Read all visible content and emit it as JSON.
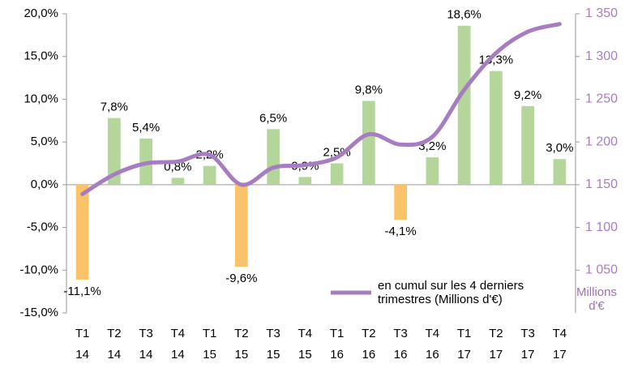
{
  "chart_data": {
    "type": "bar_line",
    "categories": [
      [
        "T1",
        "14"
      ],
      [
        "T2",
        "14"
      ],
      [
        "T3",
        "14"
      ],
      [
        "T4",
        "14"
      ],
      [
        "T1",
        "15"
      ],
      [
        "T2",
        "15"
      ],
      [
        "T3",
        "15"
      ],
      [
        "T4",
        "15"
      ],
      [
        "T1",
        "16"
      ],
      [
        "T2",
        "16"
      ],
      [
        "T3",
        "16"
      ],
      [
        "T4",
        "16"
      ],
      [
        "T1",
        "17"
      ],
      [
        "T2",
        "17"
      ],
      [
        "T3",
        "17"
      ],
      [
        "T4",
        "17"
      ]
    ],
    "values": [
      -11.1,
      7.8,
      5.4,
      0.8,
      2.2,
      -9.6,
      6.5,
      0.9,
      2.5,
      9.8,
      -4.1,
      3.2,
      18.6,
      13.3,
      9.2,
      3.0
    ],
    "value_labels": [
      "-11,1%",
      "7,8%",
      "5,4%",
      "0,8%",
      "2,2%",
      "-9,6%",
      "6,5%",
      "0,9%",
      "2,5%",
      "9,8%",
      "-4,1%",
      "3,2%",
      "18,6%",
      "13,3%",
      "9,2%",
      "3,0%"
    ],
    "color": "#b5d69b",
    "negative_color": "#fac36a",
    "series": [
      {
        "name": "en cumul sur les 4 derniers trimestres (Millions d'€)",
        "color": "#a77dc2",
        "axis": "y2",
        "values": [
          1139,
          1162,
          1175,
          1177,
          1185,
          1150,
          1170,
          1173,
          1182,
          1209,
          1197,
          1206,
          1261,
          1304,
          1329,
          1338
        ]
      }
    ],
    "ylim": [
      -15,
      20
    ],
    "yticks": [
      {
        "value": -15,
        "label": "-15,0%"
      },
      {
        "value": -10,
        "label": "-10,0%"
      },
      {
        "value": -5,
        "label": "-5,0%"
      },
      {
        "value": 0,
        "label": "0,0%"
      },
      {
        "value": 5,
        "label": "5,0%"
      },
      {
        "value": 10,
        "label": "10,0%"
      },
      {
        "value": 15,
        "label": "15,0%"
      },
      {
        "value": 20,
        "label": "20,0%"
      }
    ],
    "y2lim": [
      1000,
      1350
    ],
    "y2ticks": [
      {
        "value": 1050,
        "label": "1 050"
      },
      {
        "value": 1100,
        "label": "1 100"
      },
      {
        "value": 1150,
        "label": "1 150"
      },
      {
        "value": 1200,
        "label": "1 200"
      },
      {
        "value": 1250,
        "label": "1 250"
      },
      {
        "value": 1300,
        "label": "1 300"
      },
      {
        "value": 1350,
        "label": "1 350"
      }
    ],
    "y2label": "Millions d'€"
  }
}
